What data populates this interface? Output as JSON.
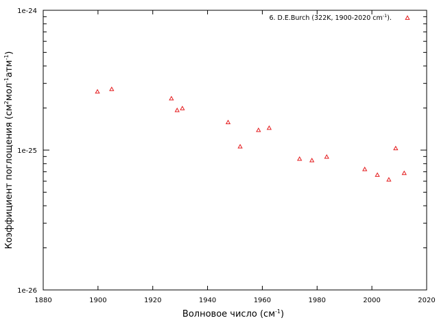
{
  "chart_data": {
    "type": "scatter",
    "xlabel": {
      "text": "Волновое число (см",
      "sup": "-1",
      "close": ")"
    },
    "ylabel": {
      "prefix": "Коэффициент поглощения (см",
      "sup1": "2",
      "mid1": "мол",
      "sup2": "-1",
      "mid2": "атм",
      "sup3": "-1",
      "close": ")"
    },
    "xlim": [
      1880,
      2020
    ],
    "ylim": [
      1e-26,
      1e-24
    ],
    "yscale": "log",
    "grid": false,
    "legend_position": "top-right",
    "x_ticks": [
      {
        "value": 1880,
        "label": "1880"
      },
      {
        "value": 1900,
        "label": "1900"
      },
      {
        "value": 1920,
        "label": "1920"
      },
      {
        "value": 1940,
        "label": "1940"
      },
      {
        "value": 1960,
        "label": "1960"
      },
      {
        "value": 1980,
        "label": "1980"
      },
      {
        "value": 2000,
        "label": "2000"
      },
      {
        "value": 2020,
        "label": "2020"
      }
    ],
    "y_ticks": [
      {
        "value": 1e-26,
        "label": "1e-26"
      },
      {
        "value": 1e-25,
        "label": "1e-25"
      },
      {
        "value": 1e-24,
        "label": "1e-24"
      }
    ],
    "series": [
      {
        "name": "6. D.E.Burch (322K, 1900-2020 cm",
        "name_sup": "-1",
        "name_close": ").",
        "color": "#e41a1c",
        "marker": "triangle",
        "points": [
          {
            "x": 1899.8,
            "y": 2.62e-25
          },
          {
            "x": 1905.0,
            "y": 2.73e-25
          },
          {
            "x": 1926.8,
            "y": 2.34e-25
          },
          {
            "x": 1928.9,
            "y": 1.93e-25
          },
          {
            "x": 1930.8,
            "y": 1.99e-25
          },
          {
            "x": 1947.5,
            "y": 1.58e-25
          },
          {
            "x": 1951.9,
            "y": 1.06e-25
          },
          {
            "x": 1958.6,
            "y": 1.39e-25
          },
          {
            "x": 1962.5,
            "y": 1.44e-25
          },
          {
            "x": 1973.6,
            "y": 8.65e-26
          },
          {
            "x": 1978.1,
            "y": 8.45e-26
          },
          {
            "x": 1983.5,
            "y": 8.95e-26
          },
          {
            "x": 1997.4,
            "y": 7.3e-26
          },
          {
            "x": 2002.0,
            "y": 6.65e-26
          },
          {
            "x": 2006.2,
            "y": 6.15e-26
          },
          {
            "x": 2008.7,
            "y": 1.03e-25
          },
          {
            "x": 2011.8,
            "y": 6.85e-26
          }
        ]
      }
    ]
  }
}
